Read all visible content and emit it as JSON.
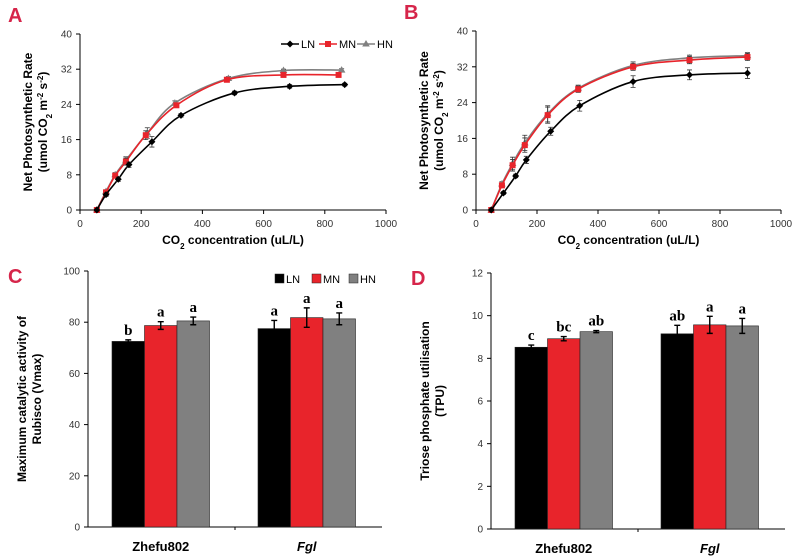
{
  "colors": {
    "LN": "#000000",
    "MN": "#e8242b",
    "HN": "#808080",
    "panel_label": "#d6254a"
  },
  "chart_data": [
    {
      "panel": "A",
      "type": "line",
      "xlabel": "CO2  concentration (uL/L)",
      "ylabel": [
        "Net Photosynthetic Rate",
        "(umol CO2 m-2 s-2)"
      ],
      "xlim": [
        0,
        1000
      ],
      "ylim": [
        0,
        40
      ],
      "xticks": [
        0,
        200,
        400,
        600,
        800,
        1000
      ],
      "yticks": [
        0,
        8,
        16,
        24,
        32,
        40
      ],
      "legend": "top-right",
      "grid": false,
      "series": [
        {
          "name": "LN",
          "marker": "diamond",
          "x": [
            55,
            85,
            125,
            160,
            235,
            330,
            505,
            685,
            865
          ],
          "y": [
            0,
            3.5,
            7,
            10.3,
            15.5,
            21.5,
            26.6,
            28.1,
            28.5
          ],
          "err": [
            0,
            0.4,
            0.5,
            0.6,
            1.2,
            0.4,
            0.4,
            0.4,
            0.3
          ]
        },
        {
          "name": "MN",
          "marker": "square",
          "x": [
            55,
            85,
            115,
            150,
            215,
            315,
            480,
            665,
            845
          ],
          "y": [
            0,
            4,
            7.8,
            11,
            17,
            23.8,
            29.6,
            30.7,
            30.7
          ],
          "err": [
            0,
            0.4,
            0.5,
            0.8,
            1,
            0.5,
            0.4,
            0.3,
            0.3
          ]
        },
        {
          "name": "HN",
          "marker": "triangle",
          "x": [
            55,
            85,
            115,
            150,
            220,
            310,
            485,
            665,
            855
          ],
          "y": [
            0,
            4.2,
            8,
            11.3,
            17.5,
            24.3,
            29.9,
            31.7,
            31.8
          ],
          "err": [
            0,
            0.4,
            0.5,
            0.8,
            1.2,
            0.5,
            0.4,
            0.3,
            0.3
          ]
        }
      ]
    },
    {
      "panel": "B",
      "type": "line",
      "xlabel": "CO2  concentration (uL/L)",
      "ylabel": [
        "Net Photosynthetic Rate",
        "(umol CO2 m-2 s-2)"
      ],
      "xlim": [
        0,
        1000
      ],
      "ylim": [
        0,
        40
      ],
      "xticks": [
        0,
        200,
        400,
        600,
        800,
        1000
      ],
      "yticks": [
        0,
        8,
        16,
        24,
        32,
        40
      ],
      "grid": false,
      "series": [
        {
          "name": "LN",
          "marker": "diamond",
          "x": [
            50,
            90,
            130,
            165,
            245,
            340,
            515,
            700,
            890
          ],
          "y": [
            0,
            3.8,
            7.6,
            11.2,
            17.6,
            23.3,
            28.7,
            30.2,
            30.6
          ],
          "err": [
            0,
            0.3,
            0.4,
            0.8,
            0.9,
            1.2,
            1.3,
            1.1,
            1.2
          ]
        },
        {
          "name": "MN",
          "marker": "square",
          "x": [
            50,
            85,
            120,
            160,
            235,
            335,
            515,
            700,
            890
          ],
          "y": [
            0,
            5.5,
            10,
            14.5,
            21.2,
            27,
            32,
            33.5,
            34.2
          ],
          "err": [
            0,
            0.5,
            1.3,
            1.6,
            1.8,
            0.7,
            0.8,
            0.8,
            0.8
          ]
        },
        {
          "name": "HN",
          "marker": "triangle",
          "x": [
            50,
            85,
            120,
            160,
            235,
            335,
            515,
            700,
            890
          ],
          "y": [
            0,
            5.8,
            10.4,
            15,
            21.5,
            27.2,
            32.3,
            34,
            34.5
          ],
          "err": [
            0,
            0.5,
            1.4,
            1.7,
            1.8,
            0.7,
            0.8,
            0.6,
            0.7
          ]
        }
      ]
    },
    {
      "panel": "C",
      "type": "bar",
      "categories": [
        "Zhefu802",
        "Fgl"
      ],
      "ylabel": [
        "Maximum catalytic activity of",
        "Rubisco (Vmax)"
      ],
      "ylim": [
        0,
        100
      ],
      "yticks": [
        0,
        20,
        40,
        60,
        80,
        100
      ],
      "legend": "top-right",
      "series": [
        {
          "name": "LN",
          "values": [
            72.5,
            77.5
          ],
          "err": [
            0.6,
            3.2
          ],
          "letters": [
            "b",
            "a"
          ]
        },
        {
          "name": "MN",
          "values": [
            78.7,
            81.8
          ],
          "err": [
            1.5,
            3.8
          ],
          "letters": [
            "a",
            "a"
          ]
        },
        {
          "name": "HN",
          "values": [
            80.5,
            81.3
          ],
          "err": [
            1.5,
            2.3
          ],
          "letters": [
            "a",
            "a"
          ]
        }
      ]
    },
    {
      "panel": "D",
      "type": "bar",
      "categories": [
        "Zhefu802",
        "Fgl"
      ],
      "ylabel": [
        "Triose phosphate utilisation",
        "(TPU)"
      ],
      "ylim": [
        0,
        12
      ],
      "yticks": [
        0,
        2,
        4,
        6,
        8,
        10,
        12
      ],
      "series": [
        {
          "name": "LN",
          "values": [
            8.52,
            9.15
          ],
          "err": [
            0.1,
            0.4
          ],
          "letters": [
            "c",
            "ab"
          ]
        },
        {
          "name": "MN",
          "values": [
            8.92,
            9.57
          ],
          "err": [
            0.1,
            0.4
          ],
          "letters": [
            "bc",
            "a"
          ]
        },
        {
          "name": "HN",
          "values": [
            9.25,
            9.52
          ],
          "err": [
            0.05,
            0.35
          ],
          "letters": [
            "ab",
            "a"
          ]
        }
      ]
    }
  ]
}
